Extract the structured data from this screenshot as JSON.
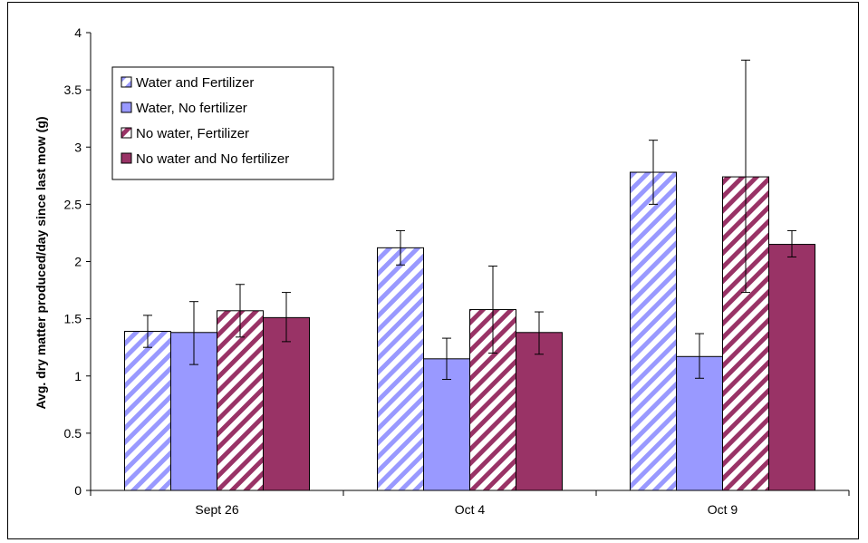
{
  "chart_data": {
    "type": "bar",
    "title": "",
    "xlabel": "",
    "ylabel": "Avg. dry matter produced/day since last mow (g)",
    "ylim": [
      0,
      4
    ],
    "yticks": [
      "0",
      "0.5",
      "1",
      "1.5",
      "2",
      "2.5",
      "3",
      "3.5",
      "4"
    ],
    "grid": false,
    "legend_position": "top-left",
    "categories": [
      "Sept 26",
      "Oct 4",
      "Oct 9"
    ],
    "series": [
      {
        "name": "Water and Fertilizer",
        "pattern": "hatched",
        "color": "#9999ff",
        "values": [
          1.39,
          2.12,
          2.78
        ],
        "err_low": [
          1.25,
          1.97,
          2.5
        ],
        "err_high": [
          1.53,
          2.27,
          3.06
        ]
      },
      {
        "name": "Water, No fertilizer",
        "pattern": "solid",
        "color": "#9999ff",
        "values": [
          1.38,
          1.15,
          1.17
        ],
        "err_low": [
          1.1,
          0.97,
          0.98
        ],
        "err_high": [
          1.65,
          1.33,
          1.37
        ]
      },
      {
        "name": "No water, Fertilizer",
        "pattern": "hatched",
        "color": "#993366",
        "values": [
          1.57,
          1.58,
          2.74
        ],
        "err_low": [
          1.34,
          1.2,
          1.73
        ],
        "err_high": [
          1.8,
          1.96,
          3.76
        ]
      },
      {
        "name": "No water and No fertilizer",
        "pattern": "solid",
        "color": "#993366",
        "values": [
          1.51,
          1.38,
          2.15
        ],
        "err_low": [
          1.3,
          1.19,
          2.04
        ],
        "err_high": [
          1.73,
          1.56,
          2.27
        ]
      }
    ]
  }
}
